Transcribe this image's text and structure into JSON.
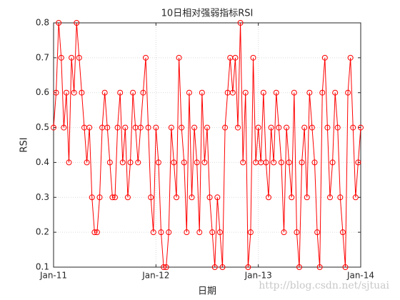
{
  "chart_data": {
    "type": "line",
    "title": "10日相对强弱指标RSI",
    "xlabel": "日期",
    "ylabel": "RSI",
    "watermark": "http://blog.csdn.net/sjtuai",
    "x": [
      2011,
      2011.025,
      2011.05,
      2011.075,
      2011.1,
      2011.125,
      2011.15,
      2011.175,
      2011.2,
      2011.225,
      2011.25,
      2011.275,
      2011.3,
      2011.325,
      2011.35,
      2011.375,
      2011.4,
      2011.425,
      2011.45,
      2011.475,
      2011.5,
      2011.525,
      2011.55,
      2011.575,
      2011.6,
      2011.625,
      2011.65,
      2011.675,
      2011.7,
      2011.725,
      2011.75,
      2011.775,
      2011.8,
      2011.825,
      2011.85,
      2011.875,
      2011.9,
      2011.925,
      2011.95,
      2011.975,
      2012,
      2012.025,
      2012.05,
      2012.075,
      2012.1,
      2012.125,
      2012.15,
      2012.175,
      2012.2,
      2012.225,
      2012.25,
      2012.275,
      2012.3,
      2012.325,
      2012.35,
      2012.375,
      2012.4,
      2012.425,
      2012.45,
      2012.475,
      2012.5,
      2012.525,
      2012.55,
      2012.575,
      2012.6,
      2012.625,
      2012.65,
      2012.675,
      2012.7,
      2012.725,
      2012.75,
      2012.775,
      2012.8,
      2012.825,
      2012.85,
      2012.875,
      2012.9,
      2012.925,
      2012.95,
      2012.975,
      2013,
      2013.025,
      2013.05,
      2013.075,
      2013.1,
      2013.125,
      2013.15,
      2013.175,
      2013.2,
      2013.225,
      2013.25,
      2013.275,
      2013.3,
      2013.325,
      2013.35,
      2013.375,
      2013.4,
      2013.425,
      2013.45,
      2013.475,
      2013.5,
      2013.525,
      2013.55,
      2013.575,
      2013.6,
      2013.625,
      2013.65,
      2013.675,
      2013.7,
      2013.725,
      2013.75,
      2013.775,
      2013.8,
      2013.825,
      2013.85,
      2013.875,
      2013.9,
      2013.925,
      2013.95,
      2013.975,
      2014
    ],
    "series": [
      {
        "name": "RSI",
        "color": "#ff0000",
        "values": [
          0.5,
          0.6,
          0.8,
          0.7,
          0.5,
          0.6,
          0.4,
          0.7,
          0.6,
          0.8,
          0.7,
          0.6,
          0.5,
          0.4,
          0.5,
          0.3,
          0.2,
          0.2,
          0.3,
          0.5,
          0.6,
          0.5,
          0.4,
          0.3,
          0.3,
          0.5,
          0.6,
          0.4,
          0.5,
          0.3,
          0.4,
          0.6,
          0.5,
          0.4,
          0.5,
          0.6,
          0.7,
          0.5,
          0.3,
          0.2,
          0.5,
          0.4,
          0.2,
          0.1,
          0.1,
          0.2,
          0.5,
          0.4,
          0.3,
          0.7,
          0.5,
          0.4,
          0.2,
          0.6,
          0.3,
          0.5,
          0.4,
          0.2,
          0.6,
          0.4,
          0.5,
          0.3,
          0.2,
          0.1,
          0.3,
          0.2,
          0.1,
          0.5,
          0.6,
          0.7,
          0.6,
          0.7,
          0.5,
          0.8,
          0.4,
          0.6,
          0.1,
          0.2,
          0.7,
          0.4,
          0.5,
          0.4,
          0.6,
          0.4,
          0.3,
          0.5,
          0.4,
          0.6,
          0.5,
          0.4,
          0.2,
          0.5,
          0.4,
          0.3,
          0.6,
          0.2,
          0.1,
          0.4,
          0.5,
          0.3,
          0.6,
          0.5,
          0.4,
          0.2,
          0.1,
          0.6,
          0.7,
          0.5,
          0.3,
          0.4,
          0.6,
          0.5,
          0.3,
          0.2,
          0.1,
          0.6,
          0.7,
          0.5,
          0.3,
          0.4,
          0.5
        ]
      }
    ],
    "xlim": [
      2011,
      2014
    ],
    "xticks": [
      {
        "value": 2011,
        "label": "Jan-11"
      },
      {
        "value": 2012,
        "label": "Jan-12"
      },
      {
        "value": 2013,
        "label": "Jan-13"
      },
      {
        "value": 2014,
        "label": "Jan-14"
      }
    ],
    "ylim": [
      0.1,
      0.8
    ],
    "yticks": [
      0.1,
      0.2,
      0.3,
      0.4,
      0.5,
      0.6,
      0.7,
      0.8
    ],
    "grid": true
  }
}
